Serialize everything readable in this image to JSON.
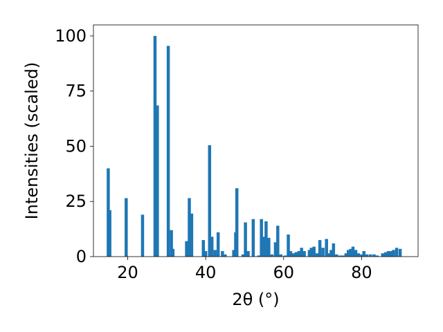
{
  "chart_data": {
    "type": "bar",
    "xlabel": "2θ (°)",
    "ylabel": "Intensities (scaled)",
    "xlim": [
      11.2,
      94.5
    ],
    "ylim": [
      0,
      105
    ],
    "xticks": [
      20,
      40,
      60,
      80
    ],
    "yticks": [
      0,
      25,
      50,
      75,
      100
    ],
    "grid": false,
    "bar_color": "#1f77b4",
    "bar_width": 0.8,
    "x": [
      15.0,
      15.4,
      19.6,
      23.8,
      27.0,
      27.6,
      30.4,
      31.2,
      31.6,
      35.1,
      35.8,
      36.4,
      39.4,
      40.0,
      41.0,
      41.6,
      42.4,
      43.2,
      44.3,
      45.0,
      47.2,
      47.7,
      48.0,
      49.6,
      50.2,
      50.9,
      52.2,
      53.6,
      54.3,
      54.9,
      55.5,
      56.2,
      57.0,
      57.9,
      58.5,
      59.3,
      60.4,
      61.2,
      61.8,
      62.4,
      63.2,
      63.9,
      64.6,
      65.3,
      66.6,
      67.1,
      67.8,
      68.6,
      69.3,
      70.1,
      71.0,
      71.6,
      72.2,
      72.8,
      73.6,
      74.5,
      75.2,
      76.0,
      76.6,
      77.2,
      77.8,
      78.5,
      79.2,
      80.0,
      80.6,
      81.4,
      82.3,
      83.2,
      84.0,
      85.4,
      86.2,
      86.9,
      87.6,
      88.2,
      89.0,
      89.9
    ],
    "values": [
      40,
      21,
      26.5,
      19,
      100,
      68.5,
      95.5,
      12,
      3.5,
      7,
      26.5,
      19.5,
      7.5,
      2.5,
      50.5,
      9,
      3,
      11,
      2.5,
      1,
      3,
      11,
      31,
      1,
      15.5,
      2.5,
      17,
      0.5,
      17,
      9,
      16,
      8.5,
      1,
      6.5,
      14,
      1,
      0.5,
      10,
      2.5,
      1.5,
      2,
      2.5,
      4,
      2.5,
      3,
      4,
      4.5,
      1.5,
      7.5,
      4,
      8,
      1.5,
      3,
      6,
      1,
      0.5,
      0.5,
      1.5,
      3,
      3.5,
      4.5,
      3,
      1.5,
      1,
      2.5,
      1,
      1,
      1,
      0.5,
      1.5,
      2,
      2.5,
      2.5,
      3,
      4,
      3.5
    ]
  }
}
